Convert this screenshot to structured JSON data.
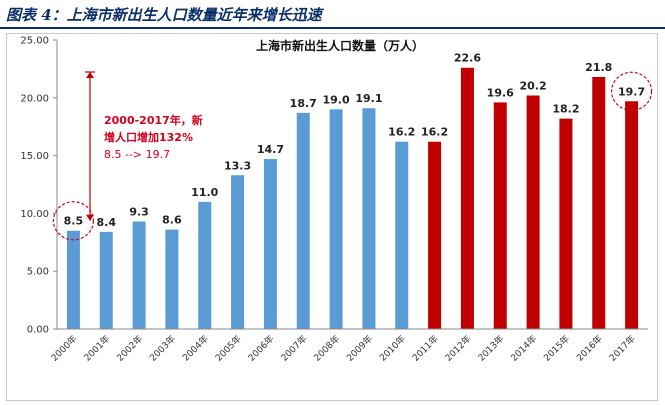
{
  "figure_title": "图表 4：上海市新出生人口数量近年来增长迅速",
  "chart_data": {
    "type": "bar",
    "title": "上海市新出生人口数量（万人）",
    "categories": [
      "2000年",
      "2001年",
      "2002年",
      "2003年",
      "2004年",
      "2005年",
      "2006年",
      "2007年",
      "2008年",
      "2009年",
      "2010年",
      "2011年",
      "2012年",
      "2013年",
      "2014年",
      "2015年",
      "2016年",
      "2017年"
    ],
    "values": [
      8.5,
      8.4,
      9.3,
      8.6,
      11.0,
      13.3,
      14.7,
      18.7,
      19.0,
      19.1,
      16.2,
      16.2,
      22.6,
      19.6,
      20.2,
      18.2,
      21.8,
      19.7
    ],
    "value_labels": [
      "8.5",
      "8.4",
      "9.3",
      "8.6",
      "11.0",
      "13.3",
      "14.7",
      "18.7",
      "19.0",
      "19.1",
      "16.2",
      "16.2",
      "22.6",
      "19.6",
      "20.2",
      "18.2",
      "21.8",
      "19.7"
    ],
    "bar_colors": [
      "#5b9bd5",
      "#5b9bd5",
      "#5b9bd5",
      "#5b9bd5",
      "#5b9bd5",
      "#5b9bd5",
      "#5b9bd5",
      "#5b9bd5",
      "#5b9bd5",
      "#5b9bd5",
      "#5b9bd5",
      "#c00000",
      "#c00000",
      "#c00000",
      "#c00000",
      "#c00000",
      "#c00000",
      "#c00000"
    ],
    "ylim": [
      0,
      25
    ],
    "yticks": [
      "0.00",
      "5.00",
      "10.00",
      "15.00",
      "20.00",
      "25.00"
    ],
    "grid": false,
    "annotation": {
      "line1": "2000-2017年，新",
      "line2": "增人口增加132%",
      "line3": "8.5 --> 19.7"
    },
    "highlight_circles": [
      "2000年",
      "2017年"
    ]
  },
  "colors": {
    "blue": "#5b9bd5",
    "red": "#c00000",
    "accent_red": "#d0021b",
    "header_navy": "#0b2f6b"
  }
}
